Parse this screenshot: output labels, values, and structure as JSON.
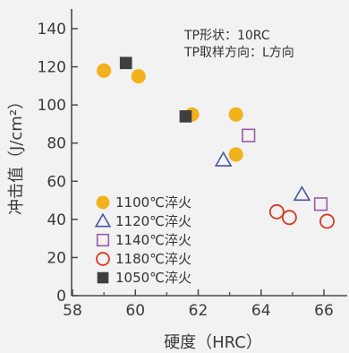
{
  "chart_data": {
    "type": "scatter",
    "xlabel": "硬度（HRC）",
    "ylabel": "冲击值（J/cm²）",
    "xlim": [
      58,
      66.3
    ],
    "ylim": [
      0,
      150
    ],
    "xticks": [
      "58",
      "60",
      "62",
      "64",
      "66"
    ],
    "yticks": [
      "0",
      "20",
      "40",
      "60",
      "80",
      "100",
      "120",
      "140"
    ],
    "annotations": [
      "TP形状：10RC",
      "TP取样方向：L方向"
    ],
    "legend_position": "bottom-left",
    "grid": false,
    "series": [
      {
        "name": "1100℃淬火",
        "marker": "filled-circle",
        "color": "#f2b21c",
        "points": [
          [
            59.0,
            118
          ],
          [
            60.1,
            115
          ],
          [
            61.8,
            95
          ],
          [
            63.2,
            95
          ],
          [
            63.2,
            74
          ]
        ]
      },
      {
        "name": "1120℃淬火",
        "marker": "open-triangle",
        "color": "#4a55a2",
        "points": [
          [
            62.8,
            71
          ],
          [
            65.3,
            53
          ]
        ]
      },
      {
        "name": "1140℃淬火",
        "marker": "open-square",
        "color": "#9a5aa8",
        "points": [
          [
            63.6,
            84
          ],
          [
            65.9,
            48
          ]
        ]
      },
      {
        "name": "1180℃淬火",
        "marker": "open-circle",
        "color": "#d63a22",
        "points": [
          [
            64.5,
            44
          ],
          [
            64.9,
            41
          ],
          [
            66.1,
            39
          ]
        ]
      },
      {
        "name": "1050℃淬火",
        "marker": "filled-square",
        "color": "#3f3f3f",
        "points": [
          [
            59.7,
            122
          ],
          [
            61.6,
            94
          ]
        ]
      }
    ]
  }
}
